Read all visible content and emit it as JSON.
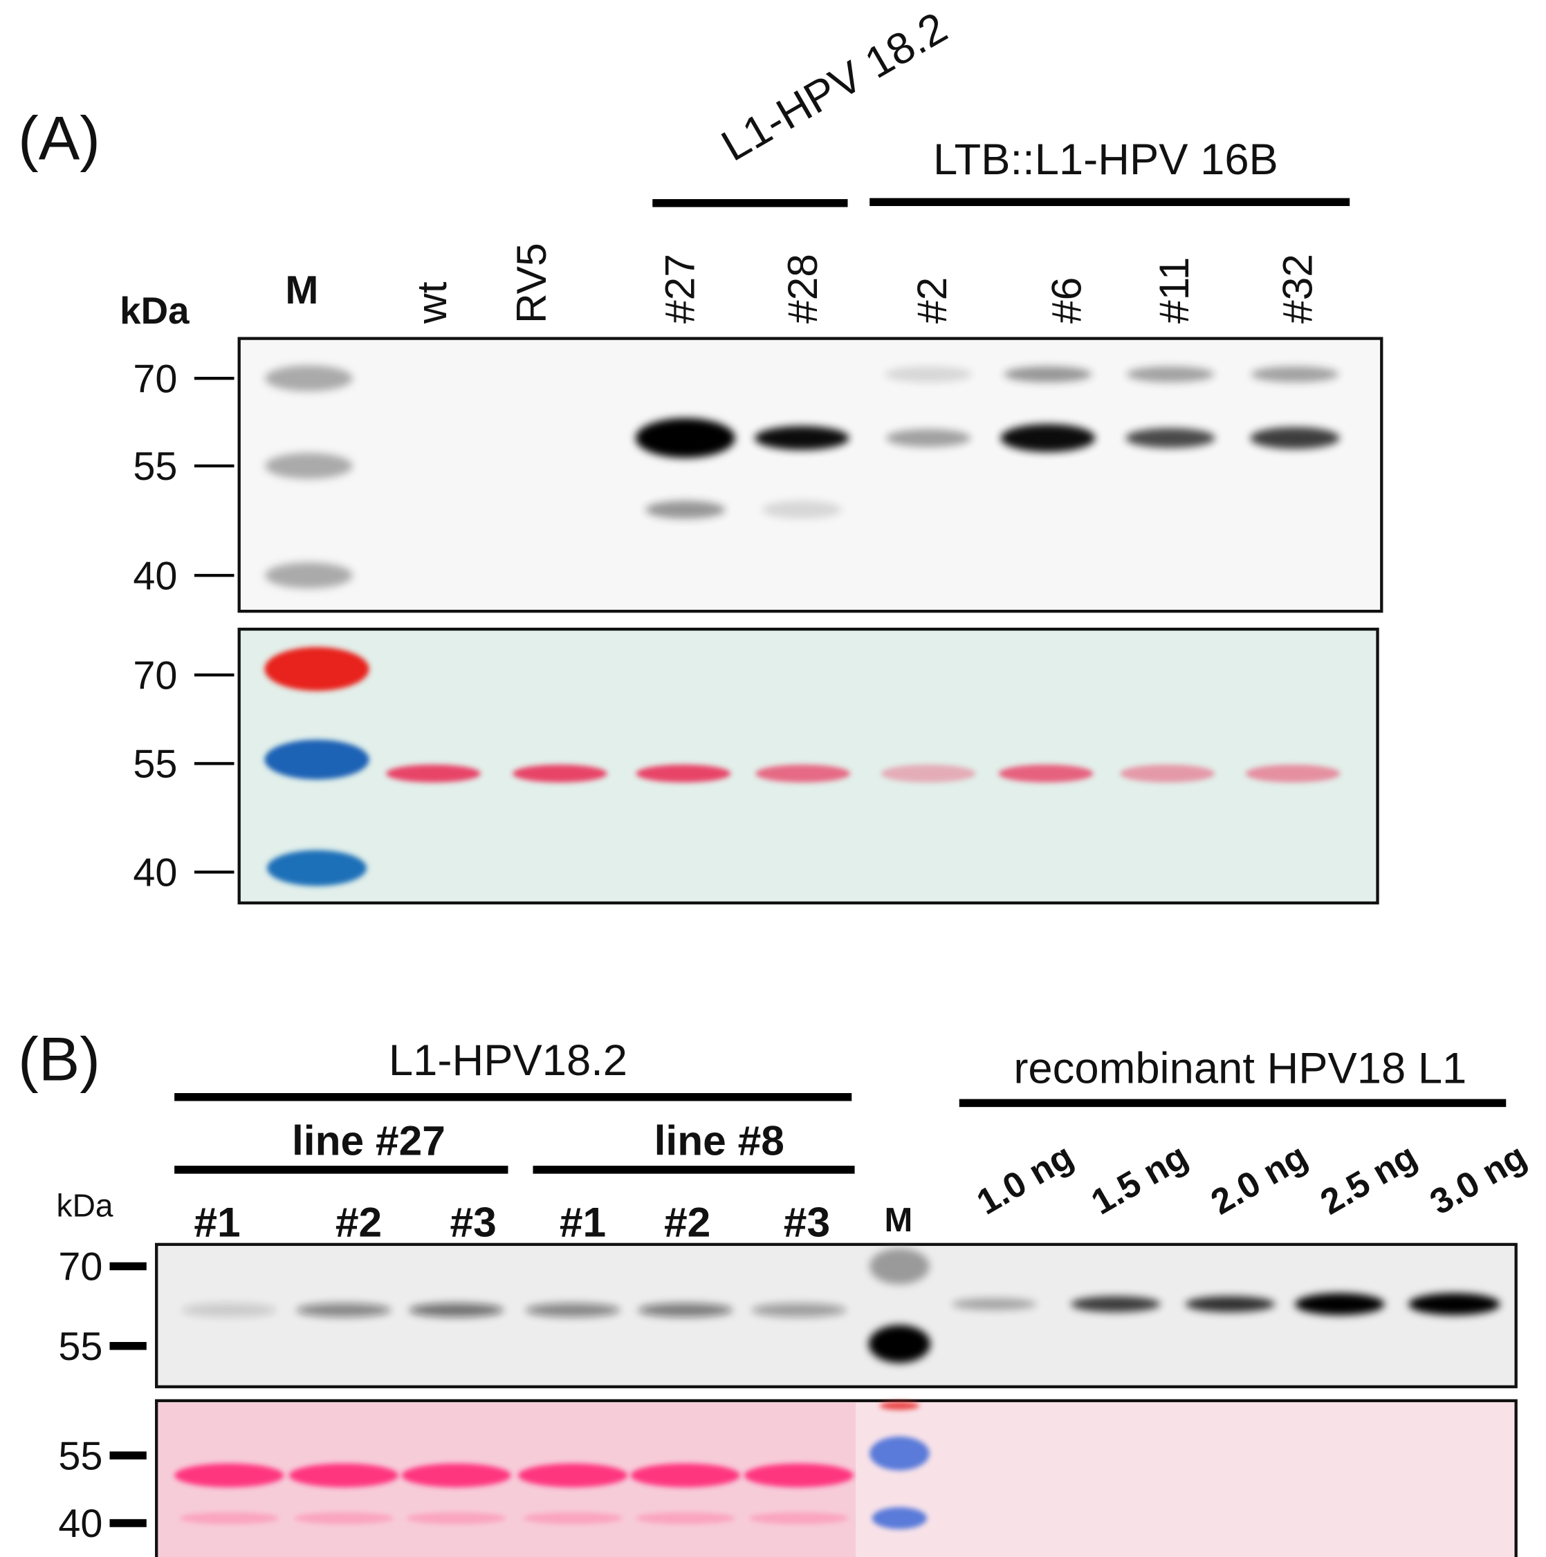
{
  "panel_a": {
    "label": "(A)",
    "unit": "kDa",
    "marker": "M",
    "groups": [
      "L1-HPV 18.2",
      "LTB::L1-HPV 16B"
    ],
    "lanes": [
      "wt",
      "RV5",
      "#27",
      "#28",
      "#2",
      "#6",
      "#11",
      "#32"
    ],
    "blot_ticks": [
      70,
      55,
      40
    ],
    "stain_ticks": [
      70,
      55,
      40
    ]
  },
  "panel_b": {
    "label": "(B)",
    "unit": "kDa",
    "marker": "M",
    "groups": [
      "L1-HPV18.2",
      "recombinant HPV18 L1"
    ],
    "subgroups": [
      "line #27",
      "line #8"
    ],
    "lanes": [
      "#1",
      "#2",
      "#3",
      "#1",
      "#2",
      "#3"
    ],
    "amounts": [
      "1.0 ng",
      "1.5 ng",
      "2.0 ng",
      "2.5 ng",
      "3.0 ng"
    ],
    "blot_ticks": [
      70,
      55
    ],
    "stain_ticks": [
      55,
      40
    ]
  }
}
